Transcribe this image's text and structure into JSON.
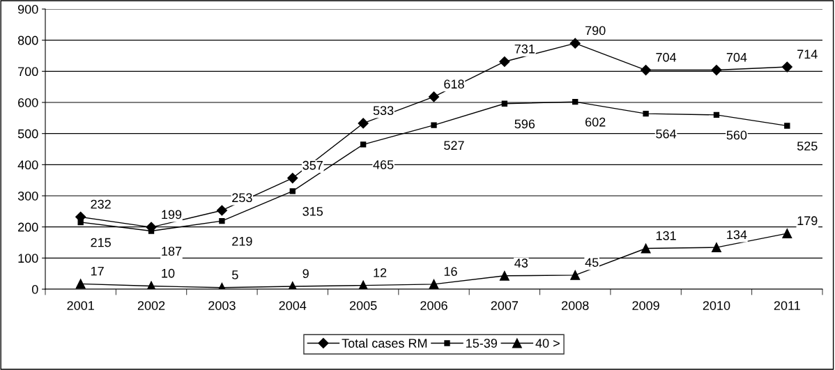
{
  "chart_data": {
    "type": "line",
    "categories": [
      "2001",
      "2002",
      "2003",
      "2004",
      "2005",
      "2006",
      "2007",
      "2008",
      "2009",
      "2010",
      "2011"
    ],
    "series": [
      {
        "name": "Total cases RM",
        "color": "#000000",
        "marker": "diamond",
        "values": [
          232,
          199,
          253,
          357,
          533,
          618,
          731,
          790,
          704,
          704,
          714
        ]
      },
      {
        "name": "15-39",
        "color": "#000000",
        "marker": "square",
        "values": [
          215,
          187,
          219,
          315,
          465,
          527,
          596,
          602,
          564,
          560,
          525
        ]
      },
      {
        "name": "40 >",
        "color": "#000000",
        "marker": "triangle",
        "values": [
          17,
          10,
          5,
          9,
          12,
          16,
          43,
          45,
          131,
          134,
          179
        ]
      }
    ],
    "ylim": [
      0,
      900
    ],
    "yticks": [
      0,
      100,
      200,
      300,
      400,
      500,
      600,
      700,
      800,
      900
    ],
    "grid": "y",
    "legend": "bottom",
    "data_labels": true,
    "line_style": "solid"
  }
}
